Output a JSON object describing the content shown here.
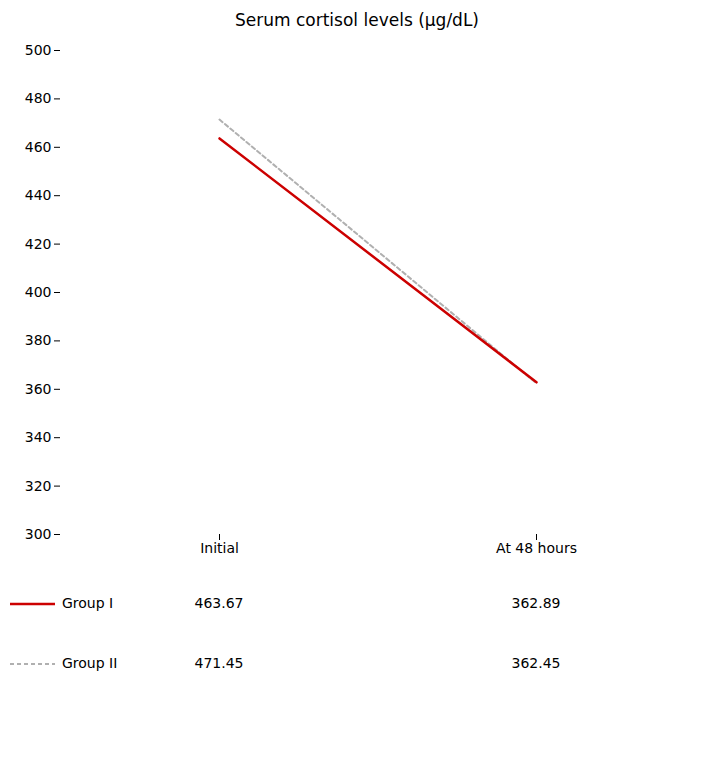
{
  "chart_data": {
    "type": "line",
    "title": "Serum cortisol levels (μg/dL)",
    "categories": [
      "Initial",
      "At 48 hours"
    ],
    "series": [
      {
        "name": "Group I",
        "color": "#cc0000",
        "line_style": "solid",
        "values": [
          463.67,
          362.89
        ]
      },
      {
        "name": "Group II",
        "color": "#b0b0b0",
        "line_style": "dashed",
        "values": [
          471.45,
          362.45
        ]
      }
    ],
    "ylim": [
      300,
      500
    ],
    "yticks": [
      300,
      320,
      340,
      360,
      380,
      400,
      420,
      440,
      460,
      480,
      500
    ],
    "grid": false,
    "legend": "bottom",
    "data_labels": true
  }
}
